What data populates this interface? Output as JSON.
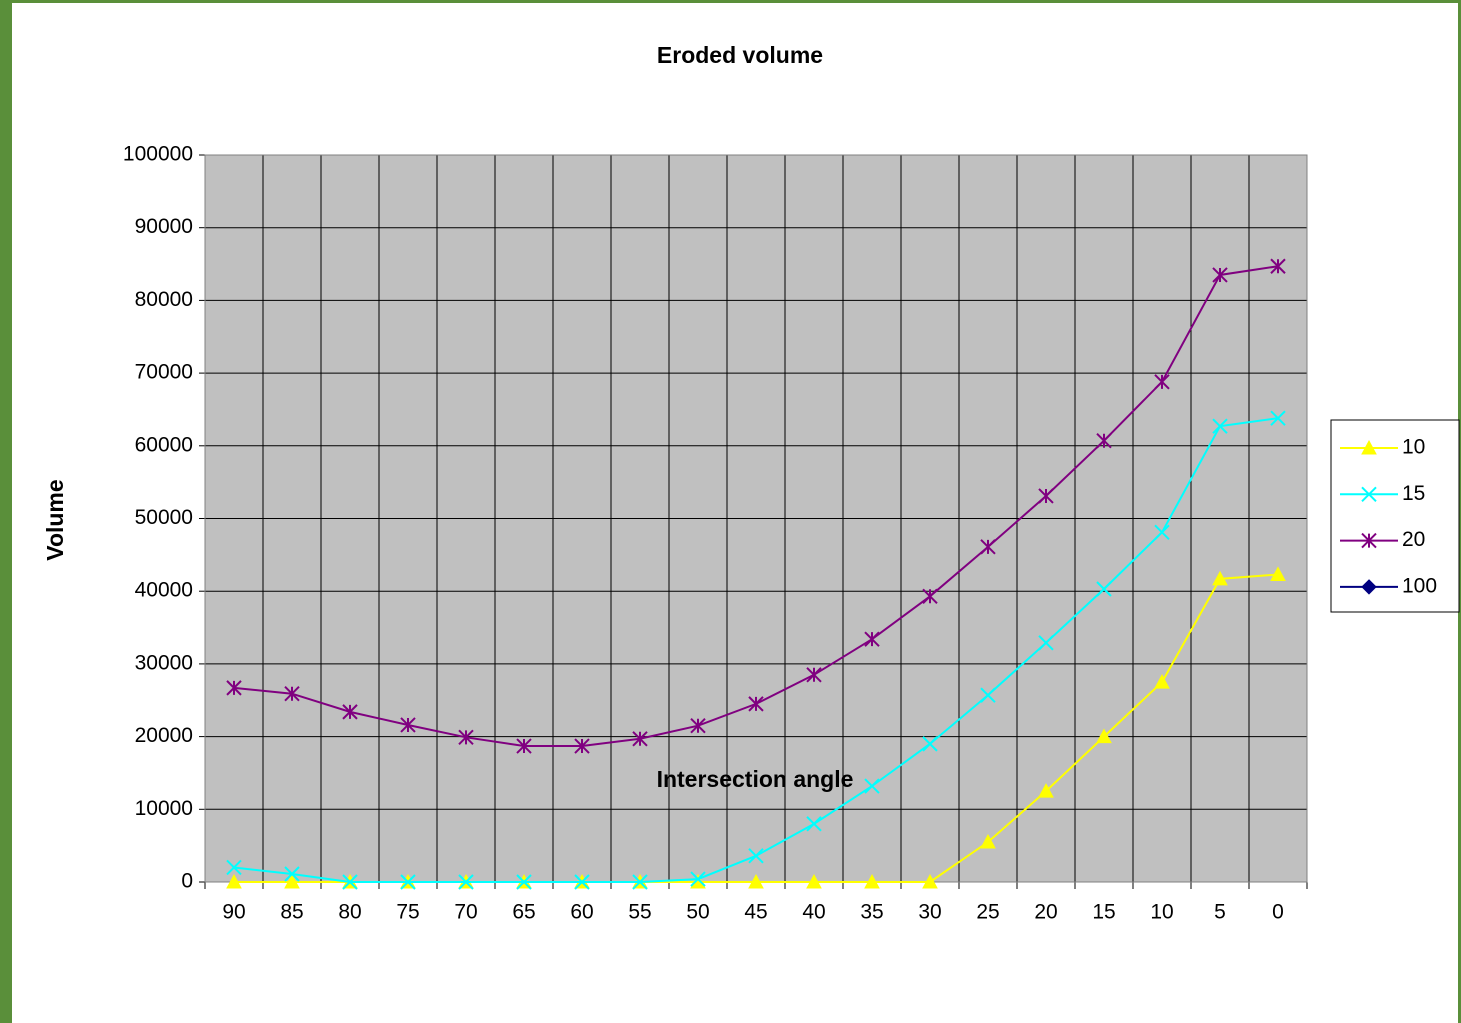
{
  "chart_data": {
    "type": "line",
    "title": "Eroded volume",
    "x_label": "Intersection angle",
    "y_label": "Volume",
    "categories": [
      "90",
      "85",
      "80",
      "75",
      "70",
      "65",
      "60",
      "55",
      "50",
      "45",
      "40",
      "35",
      "30",
      "25",
      "20",
      "15",
      "10",
      "5",
      "0"
    ],
    "series": [
      {
        "name": "10",
        "color": "#ffff00",
        "marker": "triangle",
        "values": [
          0,
          0,
          0,
          0,
          0,
          0,
          0,
          0,
          0,
          0,
          0,
          0,
          0,
          5500,
          12500,
          20000,
          27500,
          41700,
          42300
        ]
      },
      {
        "name": "15",
        "color": "#00ffff",
        "marker": "x",
        "values": [
          2000,
          1100,
          0,
          0,
          0,
          0,
          0,
          0,
          400,
          3600,
          8000,
          13200,
          19000,
          25700,
          32900,
          40300,
          48100,
          62700,
          63800
        ]
      },
      {
        "name": "20",
        "color": "#800080",
        "marker": "star",
        "values": [
          26700,
          25900,
          23400,
          21600,
          19900,
          18700,
          18700,
          19700,
          21500,
          24500,
          28500,
          33400,
          39300,
          46100,
          53100,
          60700,
          68800,
          83500,
          84700
        ]
      },
      {
        "name": "100",
        "color": "#000080",
        "marker": "diamond",
        "values": [
          null,
          null,
          null,
          null,
          null,
          null,
          null,
          null,
          null,
          null,
          null,
          null,
          null,
          null,
          null,
          null,
          null,
          null,
          null
        ]
      }
    ],
    "ylim": [
      0,
      100000
    ],
    "yticks": [
      0,
      10000,
      20000,
      30000,
      40000,
      50000,
      60000,
      70000,
      80000,
      90000,
      100000
    ],
    "grid": true,
    "legend": "right"
  }
}
